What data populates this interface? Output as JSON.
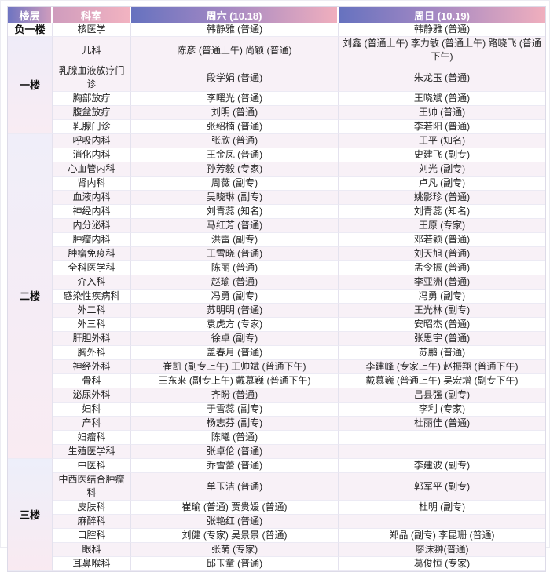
{
  "header": {
    "floor": "楼层",
    "dept": "科室",
    "sat": "周六 (10.18)",
    "sun": "周日 (10.19)"
  },
  "colors": {
    "header_blue": "#6672bf",
    "header_purple": "#a287c3",
    "header_pink": "#f0afbe",
    "header_text": "#ffffff",
    "row_stripe": "#f8f1f7",
    "floor_tint_top": "#eeedf9",
    "floor_tint_bottom": "#f9eaf2"
  },
  "floors": [
    {
      "label": "负一楼",
      "rows": [
        {
          "dept": "核医学",
          "sat": "韩静雅 (普通)",
          "sun": "韩静雅 (普通)"
        }
      ]
    },
    {
      "label": "一楼",
      "rows": [
        {
          "dept": "儿科",
          "sat": "陈彦 (普通上午) 尚颖 (普通)",
          "sun": "刘鑫 (普通上午) 李力敏 (普通上午) 路晓飞 (普通下午)"
        },
        {
          "dept": "乳腺血液放疗门诊",
          "sat": "段学娟 (普通)",
          "sun": "朱龙玉 (普通)"
        },
        {
          "dept": "胸部放疗",
          "sat": "李曙光 (普通)",
          "sun": "王晓斌 (普通)"
        },
        {
          "dept": "腹盆放疗",
          "sat": "刘明 (普通)",
          "sun": "王帅 (普通)"
        },
        {
          "dept": "乳腺门诊",
          "sat": "张绍楠 (普通)",
          "sun": "李若阳 (普通)"
        }
      ]
    },
    {
      "label": "二楼",
      "rows": [
        {
          "dept": "呼吸内科",
          "sat": "张欣 (普通)",
          "sun": "王平 (知名)"
        },
        {
          "dept": "消化内科",
          "sat": "王金凤 (普通)",
          "sun": "史建飞 (副专)"
        },
        {
          "dept": "心血管内科",
          "sat": "孙芳毅 (专家)",
          "sun": "刘光 (副专)"
        },
        {
          "dept": "肾内科",
          "sat": "周薇 (副专)",
          "sun": "卢凡 (副专)"
        },
        {
          "dept": "血液内科",
          "sat": "吴晓琳 (副专)",
          "sun": "姚影珍 (普通)"
        },
        {
          "dept": "神经内科",
          "sat": "刘青蕊 (知名)",
          "sun": "刘青蕊 (知名)"
        },
        {
          "dept": "内分泌科",
          "sat": "马红芳 (普通)",
          "sun": "王原 (专家)"
        },
        {
          "dept": "肿瘤内科",
          "sat": "洪雷 (副专)",
          "sun": "邓若颖 (普通)"
        },
        {
          "dept": "肿瘤免疫科",
          "sat": "王雪晓 (普通)",
          "sun": "刘天旭 (普通)"
        },
        {
          "dept": "全科医学科",
          "sat": "陈丽 (普通)",
          "sun": "孟令振 (普通)"
        },
        {
          "dept": "介入科",
          "sat": "赵瑜 (普通)",
          "sun": "李亚洲 (普通)"
        },
        {
          "dept": "感染性疾病科",
          "sat": "冯勇 (副专)",
          "sun": "冯勇 (副专)"
        },
        {
          "dept": "外二科",
          "sat": "苏明明 (普通)",
          "sun": "王光林 (副专)"
        },
        {
          "dept": "外三科",
          "sat": "袁虎方 (专家)",
          "sun": "安昭杰 (普通)"
        },
        {
          "dept": "肝胆外科",
          "sat": "徐卓 (副专)",
          "sun": "张思宇 (普通)"
        },
        {
          "dept": "胸外科",
          "sat": "盖春月 (普通)",
          "sun": "苏鹏 (普通)"
        },
        {
          "dept": "神经外科",
          "sat": "崔凯 (副专上午) 王帅斌 (普通下午)",
          "sun": "李建峰 (专家上午) 赵振翔 (普通下午)"
        },
        {
          "dept": "骨科",
          "sat": "王东来 (副专上午) 戴慕巍 (普通下午)",
          "sun": "戴慕巍 (普通上午) 吴宏增 (副专下午)"
        },
        {
          "dept": "泌尿外科",
          "sat": "齐盼 (普通)",
          "sun": "吕县强 (副专)"
        },
        {
          "dept": "妇科",
          "sat": "于雪蕊 (副专)",
          "sun": "李利 (专家)"
        },
        {
          "dept": "产科",
          "sat": "杨志芬 (副专)",
          "sun": "杜丽佳 (普通)"
        },
        {
          "dept": "妇瘤科",
          "sat": "陈曦 (普通)",
          "sun": ""
        },
        {
          "dept": "生殖医学科",
          "sat": "张卓伦 (普通)",
          "sun": ""
        }
      ]
    },
    {
      "label": "三楼",
      "rows": [
        {
          "dept": "中医科",
          "sat": "乔雪蕾 (普通)",
          "sun": "李建波 (副专)"
        },
        {
          "dept": "中西医结合肿瘤科",
          "sat": "单玉洁 (普通)",
          "sun": "郭军平 (副专)"
        },
        {
          "dept": "皮肤科",
          "sat": "崔瑜 (普通) 贾贵媛 (普通)",
          "sun": "杜明 (副专)"
        },
        {
          "dept": "麻醉科",
          "sat": "张艳红 (普通)",
          "sun": ""
        },
        {
          "dept": "口腔科",
          "sat": "刘健 (专家) 吴景景 (普通)",
          "sun": "郑晶 (副专) 李昆珊 (普通)"
        },
        {
          "dept": "眼科",
          "sat": "张萌 (专家)",
          "sun": "廖沫翀(普通)"
        },
        {
          "dept": "耳鼻喉科",
          "sat": "邱玉童 (普通)",
          "sun": "葛俊恒 (专家)"
        }
      ]
    }
  ]
}
